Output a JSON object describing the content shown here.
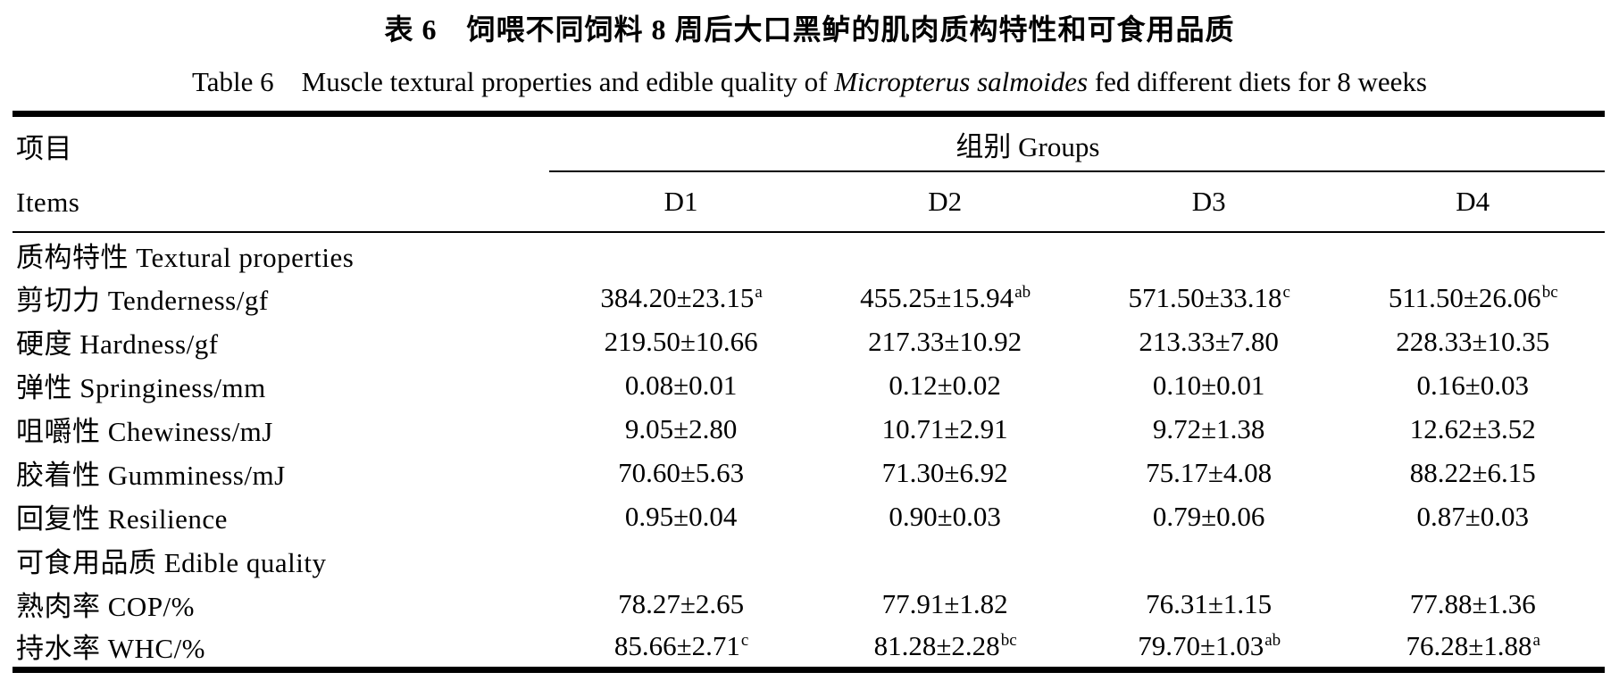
{
  "titles": {
    "chinese": "表 6　饲喂不同饲料 8 周后大口黑鲈的肌肉质构特性和可食用品质",
    "english_prefix": "Table 6　Muscle textural properties and edible quality of ",
    "english_species": "Micropterus salmoides",
    "english_suffix": " fed different diets for 8 weeks"
  },
  "table": {
    "header": {
      "items_cn": "项目",
      "items_en": "Items",
      "groups_label": "组别 Groups",
      "columns": [
        "D1",
        "D2",
        "D3",
        "D4"
      ]
    },
    "rows": [
      {
        "type": "section",
        "label": "质构特性 Textural properties"
      },
      {
        "type": "data",
        "label": "剪切力 Tenderness/gf",
        "values": [
          {
            "v": "384.20±23.15",
            "sup": "a"
          },
          {
            "v": "455.25±15.94",
            "sup": "ab"
          },
          {
            "v": "571.50±33.18",
            "sup": "c"
          },
          {
            "v": "511.50±26.06",
            "sup": "bc"
          }
        ]
      },
      {
        "type": "data",
        "label": "硬度 Hardness/gf",
        "values": [
          {
            "v": "219.50±10.66",
            "sup": ""
          },
          {
            "v": "217.33±10.92",
            "sup": ""
          },
          {
            "v": "213.33±7.80",
            "sup": ""
          },
          {
            "v": "228.33±10.35",
            "sup": ""
          }
        ]
      },
      {
        "type": "data",
        "label": "弹性 Springiness/mm",
        "values": [
          {
            "v": "0.08±0.01",
            "sup": ""
          },
          {
            "v": "0.12±0.02",
            "sup": ""
          },
          {
            "v": "0.10±0.01",
            "sup": ""
          },
          {
            "v": "0.16±0.03",
            "sup": ""
          }
        ]
      },
      {
        "type": "data",
        "label": "咀嚼性 Chewiness/mJ",
        "values": [
          {
            "v": "9.05±2.80",
            "sup": ""
          },
          {
            "v": "10.71±2.91",
            "sup": ""
          },
          {
            "v": "9.72±1.38",
            "sup": ""
          },
          {
            "v": "12.62±3.52",
            "sup": ""
          }
        ]
      },
      {
        "type": "data",
        "label": "胶着性 Gumminess/mJ",
        "values": [
          {
            "v": "70.60±5.63",
            "sup": ""
          },
          {
            "v": "71.30±6.92",
            "sup": ""
          },
          {
            "v": "75.17±4.08",
            "sup": ""
          },
          {
            "v": "88.22±6.15",
            "sup": ""
          }
        ]
      },
      {
        "type": "data",
        "label": "回复性 Resilience",
        "values": [
          {
            "v": "0.95±0.04",
            "sup": ""
          },
          {
            "v": "0.90±0.03",
            "sup": ""
          },
          {
            "v": "0.79±0.06",
            "sup": ""
          },
          {
            "v": "0.87±0.03",
            "sup": ""
          }
        ]
      },
      {
        "type": "section",
        "label": "可食用品质 Edible quality"
      },
      {
        "type": "data",
        "label": "熟肉率 COP/%",
        "values": [
          {
            "v": "78.27±2.65",
            "sup": ""
          },
          {
            "v": "77.91±1.82",
            "sup": ""
          },
          {
            "v": "76.31±1.15",
            "sup": ""
          },
          {
            "v": "77.88±1.36",
            "sup": ""
          }
        ]
      },
      {
        "type": "data",
        "label": "持水率 WHC/%",
        "values": [
          {
            "v": "85.66±2.71",
            "sup": "c"
          },
          {
            "v": "81.28±2.28",
            "sup": "bc"
          },
          {
            "v": "79.70±1.03",
            "sup": "ab"
          },
          {
            "v": "76.28±1.88",
            "sup": "a"
          }
        ]
      }
    ]
  }
}
